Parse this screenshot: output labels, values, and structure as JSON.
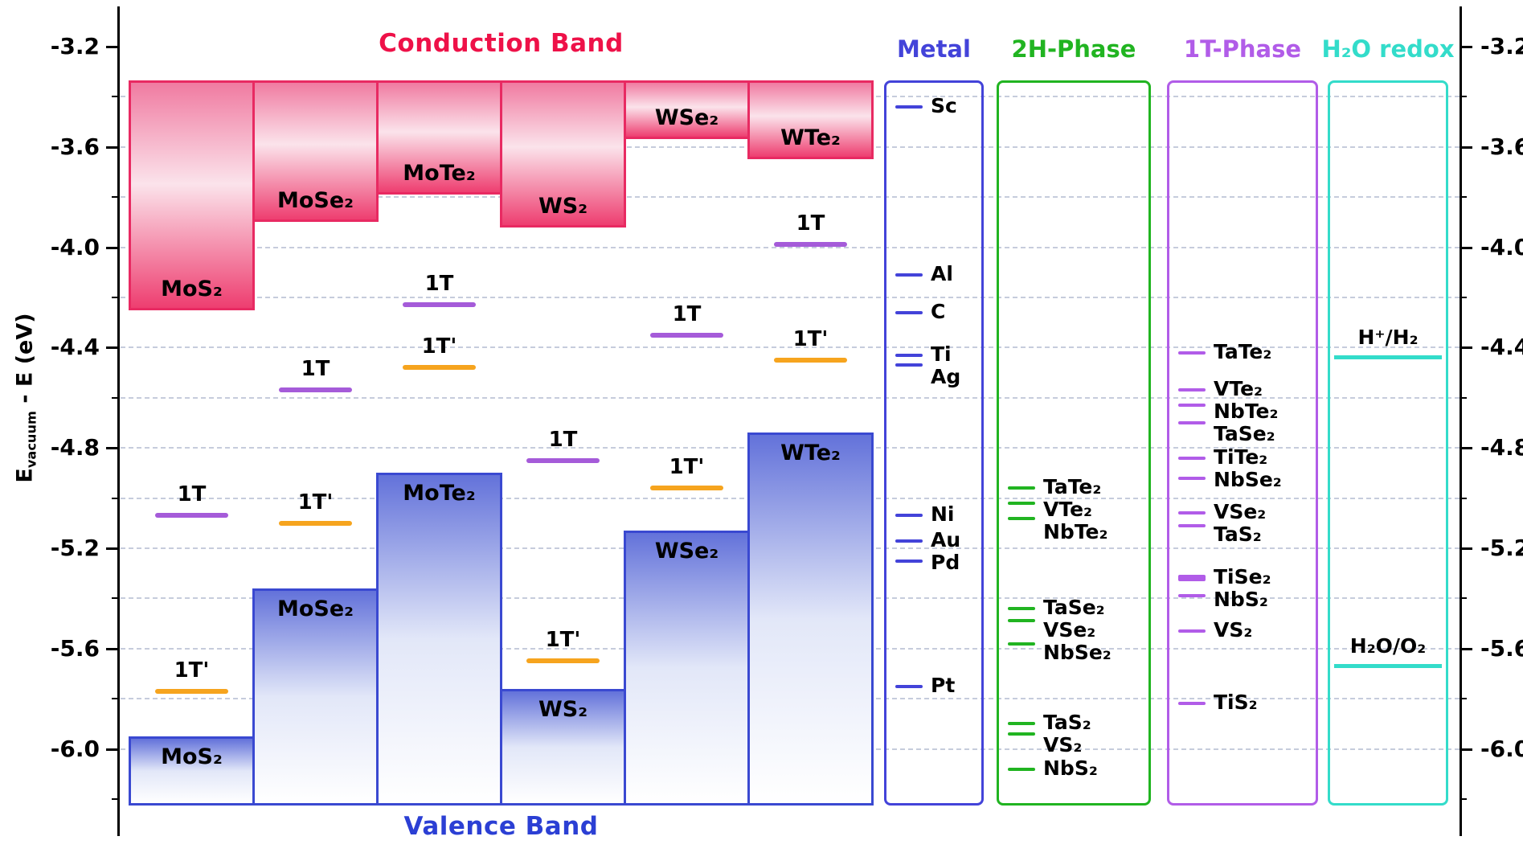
{
  "figure": {
    "conduction_title": "Conduction Band",
    "valence_title": "Valence Band",
    "y_axis_title": {
      "main": "E",
      "sub": "vacuum",
      "rest": " - E (eV)"
    },
    "colors": {
      "axis": "#000000",
      "grid": "#c6ccdc",
      "conduction_title": "#ee1148",
      "valence_title": "#2b3fd4",
      "conduction_border": "#e82a62",
      "conduction_fill_top": "#f07ba1",
      "conduction_fill_mid": "#fbe3eb",
      "conduction_fill_bottom": "#ee3e70",
      "valence_border": "#3a49d1",
      "valence_fill_top": "#6372da",
      "valence_fill_mid": "#e2e7f8",
      "valence_fill_bottom": "#ffffff",
      "t1_line": "#a55bd9",
      "t1p_line": "#f6a41e"
    }
  },
  "chart_data": {
    "type": "band-alignment",
    "ylabel": "Evacuum - E (eV)",
    "ylim": [
      -6.23,
      -3.2
    ],
    "grid": "dashed, every 0.2 eV",
    "y_axis": {
      "ticks": [
        -3.2,
        -3.6,
        -4.0,
        -4.4,
        -4.8,
        -5.2,
        -5.6,
        -6.0
      ],
      "minor_step": 0.2
    },
    "annotations": [
      "Conduction Band",
      "Valence Band"
    ],
    "phase_labels": {
      "t1": "1T",
      "t1p": "1T'"
    },
    "materials": [
      {
        "label": "MoS₂",
        "cbm": -4.25,
        "vbm": -5.95,
        "t1": -5.07,
        "t1p": -5.77
      },
      {
        "label": "MoSe₂",
        "cbm": -3.9,
        "vbm": -5.36,
        "t1": -4.57,
        "t1p": -5.1
      },
      {
        "label": "MoTe₂",
        "cbm": -3.79,
        "vbm": -4.9,
        "t1": -4.23,
        "t1p": -4.48
      },
      {
        "label": "WS₂",
        "cbm": -3.92,
        "vbm": -5.76,
        "t1": -4.85,
        "t1p": -5.65
      },
      {
        "label": "WSe₂",
        "cbm": -3.57,
        "vbm": -5.13,
        "t1": -4.35,
        "t1p": -4.96
      },
      {
        "label": "WTe₂",
        "cbm": -3.65,
        "vbm": -4.74,
        "t1": -3.99,
        "t1p": -4.45
      }
    ],
    "panels": [
      {
        "title": "Metal",
        "color": "#4343d9",
        "levels": [
          {
            "label": "Sc",
            "E": -3.44
          },
          {
            "label": "Al",
            "E": -4.11
          },
          {
            "label": "C",
            "E": -4.26
          },
          {
            "label": "Ti",
            "E": -4.43
          },
          {
            "label": "Ag",
            "E": -4.47
          },
          {
            "label": "Ni",
            "E": -5.07
          },
          {
            "label": "Au",
            "E": -5.17
          },
          {
            "label": "Pd",
            "E": -5.25
          },
          {
            "label": "Pt",
            "E": -5.75
          }
        ]
      },
      {
        "title": "2H-Phase",
        "color": "#21b421",
        "levels": [
          {
            "label": "TaTe₂",
            "E": -4.96
          },
          {
            "label": "VTe₂",
            "E": -5.02
          },
          {
            "label": "NbTe₂",
            "E": -5.08
          },
          {
            "label": "TaSe₂",
            "E": -5.44
          },
          {
            "label": "VSe₂",
            "E": -5.49
          },
          {
            "label": "NbSe₂",
            "E": -5.58
          },
          {
            "label": "TaS₂",
            "E": -5.9
          },
          {
            "label": "VS₂",
            "E": -5.94
          },
          {
            "label": "NbS₂",
            "E": -6.08
          }
        ]
      },
      {
        "title": "1T-Phase",
        "color": "#b15ce8",
        "levels": [
          {
            "label": "TaTe₂",
            "E": -4.42
          },
          {
            "label": "VTe₂",
            "E": -4.57
          },
          {
            "label": "NbTe₂",
            "E": -4.63
          },
          {
            "label": "TaSe₂",
            "E": -4.7
          },
          {
            "label": "TiTe₂",
            "E": -4.84
          },
          {
            "label": "NbSe₂",
            "E": -4.92
          },
          {
            "label": "VSe₂",
            "E": -5.06
          },
          {
            "label": "TaS₂",
            "E": -5.11
          },
          {
            "label": "TiSe₂",
            "E": -5.32,
            "thick": true
          },
          {
            "label": "NbS₂",
            "E": -5.39
          },
          {
            "label": "VS₂",
            "E": -5.53
          },
          {
            "label": "TiS₂",
            "E": -5.82
          }
        ]
      },
      {
        "title": "H₂O redox",
        "color": "#33dcca",
        "levels": [
          {
            "label": "H⁺/H₂",
            "E": -4.44
          },
          {
            "label": "H₂O/O₂",
            "E": -5.67
          }
        ]
      }
    ]
  }
}
